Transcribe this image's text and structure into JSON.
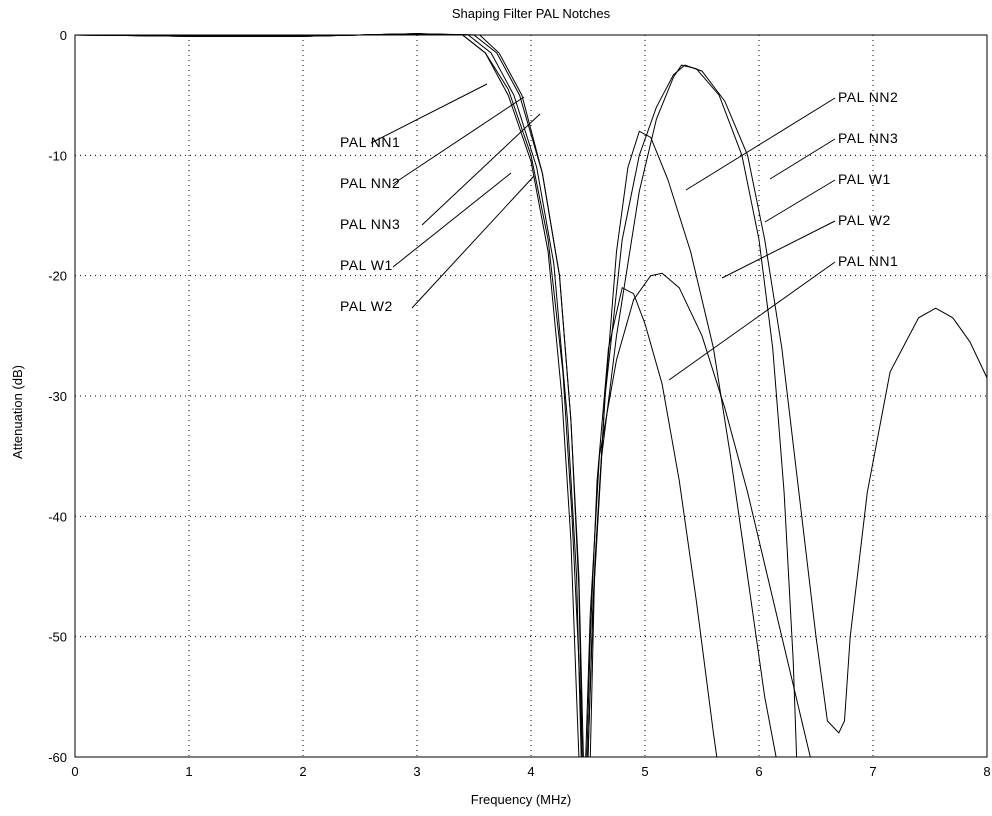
{
  "chart_data": {
    "type": "line",
    "title": "Shaping Filter PAL Notches",
    "xlabel": "Frequency (MHz)",
    "ylabel": "Attenuation (dB)",
    "xlim": [
      0,
      8
    ],
    "ylim": [
      -60,
      0
    ],
    "xticks": [
      0,
      1,
      2,
      3,
      4,
      5,
      6,
      7,
      8
    ],
    "yticks": [
      0,
      -10,
      -20,
      -30,
      -40,
      -50,
      -60
    ],
    "grid": true,
    "series": [
      {
        "name": "PAL NN1",
        "points": [
          [
            0,
            0
          ],
          [
            1,
            -0.1
          ],
          [
            2,
            -0.1
          ],
          [
            3,
            0.1
          ],
          [
            3.4,
            0
          ],
          [
            3.6,
            -1.5
          ],
          [
            3.8,
            -4.5
          ],
          [
            4.0,
            -10
          ],
          [
            4.15,
            -17
          ],
          [
            4.28,
            -28
          ],
          [
            4.36,
            -40
          ],
          [
            4.42,
            -52
          ],
          [
            4.45,
            -60
          ],
          null,
          [
            4.49,
            -60
          ],
          [
            4.52,
            -50
          ],
          [
            4.58,
            -37
          ],
          [
            4.68,
            -26
          ],
          [
            4.8,
            -21
          ],
          [
            4.9,
            -21.5
          ],
          [
            5.0,
            -24
          ],
          [
            5.15,
            -29
          ],
          [
            5.3,
            -37
          ],
          [
            5.45,
            -47
          ],
          [
            5.6,
            -58
          ],
          [
            5.63,
            -60
          ]
        ]
      },
      {
        "name": "PAL NN2",
        "points": [
          [
            0,
            0
          ],
          [
            1,
            -0.1
          ],
          [
            2,
            -0.1
          ],
          [
            3,
            0.1
          ],
          [
            3.5,
            0
          ],
          [
            3.7,
            -1.5
          ],
          [
            3.9,
            -5
          ],
          [
            4.1,
            -11.5
          ],
          [
            4.25,
            -20
          ],
          [
            4.35,
            -32
          ],
          [
            4.42,
            -46
          ],
          [
            4.45,
            -60
          ],
          null,
          [
            4.5,
            -60
          ],
          [
            4.55,
            -46
          ],
          [
            4.65,
            -30
          ],
          [
            4.8,
            -17
          ],
          [
            4.95,
            -10
          ],
          [
            5.1,
            -6
          ],
          [
            5.25,
            -3.3
          ],
          [
            5.35,
            -2.5
          ],
          [
            5.5,
            -3
          ],
          [
            5.7,
            -5.5
          ],
          [
            5.9,
            -10
          ],
          [
            6.05,
            -17
          ],
          [
            6.2,
            -26
          ],
          [
            6.35,
            -38
          ],
          [
            6.5,
            -50
          ],
          [
            6.6,
            -57
          ],
          [
            6.7,
            -58
          ],
          [
            6.75,
            -57
          ],
          [
            6.8,
            -50
          ],
          [
            6.95,
            -38
          ],
          [
            7.15,
            -28
          ],
          [
            7.4,
            -23.5
          ],
          [
            7.55,
            -22.7
          ],
          [
            7.7,
            -23.5
          ],
          [
            7.85,
            -25.5
          ],
          [
            8.0,
            -28.5
          ]
        ]
      },
      {
        "name": "PAL NN3",
        "points": [
          [
            0,
            0
          ],
          [
            1,
            -0.1
          ],
          [
            2,
            -0.1
          ],
          [
            3,
            0.1
          ],
          [
            3.45,
            0
          ],
          [
            3.65,
            -1.5
          ],
          [
            3.85,
            -5
          ],
          [
            4.05,
            -11
          ],
          [
            4.2,
            -19
          ],
          [
            4.32,
            -32
          ],
          [
            4.4,
            -45
          ],
          [
            4.44,
            -60
          ],
          null,
          [
            4.5,
            -60
          ],
          [
            4.54,
            -48
          ],
          [
            4.62,
            -35
          ],
          [
            4.75,
            -25
          ],
          [
            4.95,
            -13
          ],
          [
            5.1,
            -7
          ],
          [
            5.25,
            -3.5
          ],
          [
            5.32,
            -2.5
          ],
          [
            5.45,
            -2.8
          ],
          [
            5.65,
            -5
          ],
          [
            5.85,
            -10
          ],
          [
            6.0,
            -17
          ],
          [
            6.12,
            -26
          ],
          [
            6.22,
            -38
          ],
          [
            6.3,
            -52
          ],
          [
            6.33,
            -60
          ]
        ]
      },
      {
        "name": "PAL W1",
        "points": [
          [
            0,
            0
          ],
          [
            1,
            -0.1
          ],
          [
            2,
            -0.1
          ],
          [
            3,
            0.1
          ],
          [
            3.55,
            0
          ],
          [
            3.72,
            -1.5
          ],
          [
            3.92,
            -5
          ],
          [
            4.1,
            -11.5
          ],
          [
            4.25,
            -20
          ],
          [
            4.35,
            -32
          ],
          [
            4.42,
            -45
          ],
          [
            4.46,
            -60
          ],
          null,
          [
            4.52,
            -60
          ],
          [
            4.56,
            -44
          ],
          [
            4.65,
            -30
          ],
          [
            4.75,
            -18
          ],
          [
            4.85,
            -11
          ],
          [
            4.95,
            -8
          ],
          [
            5.05,
            -8.5
          ],
          [
            5.2,
            -12
          ],
          [
            5.4,
            -18
          ],
          [
            5.6,
            -26
          ],
          [
            5.75,
            -35
          ],
          [
            5.9,
            -45
          ],
          [
            6.05,
            -55
          ],
          [
            6.15,
            -60
          ]
        ]
      },
      {
        "name": "PAL W2",
        "points": [
          [
            0,
            0
          ],
          [
            1,
            -0.1
          ],
          [
            2,
            -0.1
          ],
          [
            3,
            0.1
          ],
          [
            3.4,
            0
          ],
          [
            3.6,
            -1.5
          ],
          [
            3.8,
            -5
          ],
          [
            4.0,
            -10.5
          ],
          [
            4.15,
            -18
          ],
          [
            4.27,
            -30
          ],
          [
            4.35,
            -42
          ],
          [
            4.4,
            -55
          ],
          [
            4.42,
            -60
          ],
          null,
          [
            4.48,
            -60
          ],
          [
            4.52,
            -48
          ],
          [
            4.6,
            -35
          ],
          [
            4.75,
            -27
          ],
          [
            4.9,
            -22
          ],
          [
            5.05,
            -20
          ],
          [
            5.15,
            -19.8
          ],
          [
            5.3,
            -21
          ],
          [
            5.5,
            -25
          ],
          [
            5.7,
            -31
          ],
          [
            5.9,
            -38
          ],
          [
            6.1,
            -46
          ],
          [
            6.3,
            -54
          ],
          [
            6.45,
            -60
          ]
        ]
      }
    ],
    "annotations": [
      {
        "text": "PAL NN1",
        "side": "left"
      },
      {
        "text": "PAL NN2",
        "side": "left"
      },
      {
        "text": "PAL NN3",
        "side": "left"
      },
      {
        "text": "PAL W1",
        "side": "left"
      },
      {
        "text": "PAL W2",
        "side": "left"
      },
      {
        "text": "PAL NN2",
        "side": "right"
      },
      {
        "text": "PAL NN3",
        "side": "right"
      },
      {
        "text": "PAL W1",
        "side": "right"
      },
      {
        "text": "PAL W2",
        "side": "right"
      },
      {
        "text": "PAL NN1",
        "side": "right"
      }
    ]
  }
}
